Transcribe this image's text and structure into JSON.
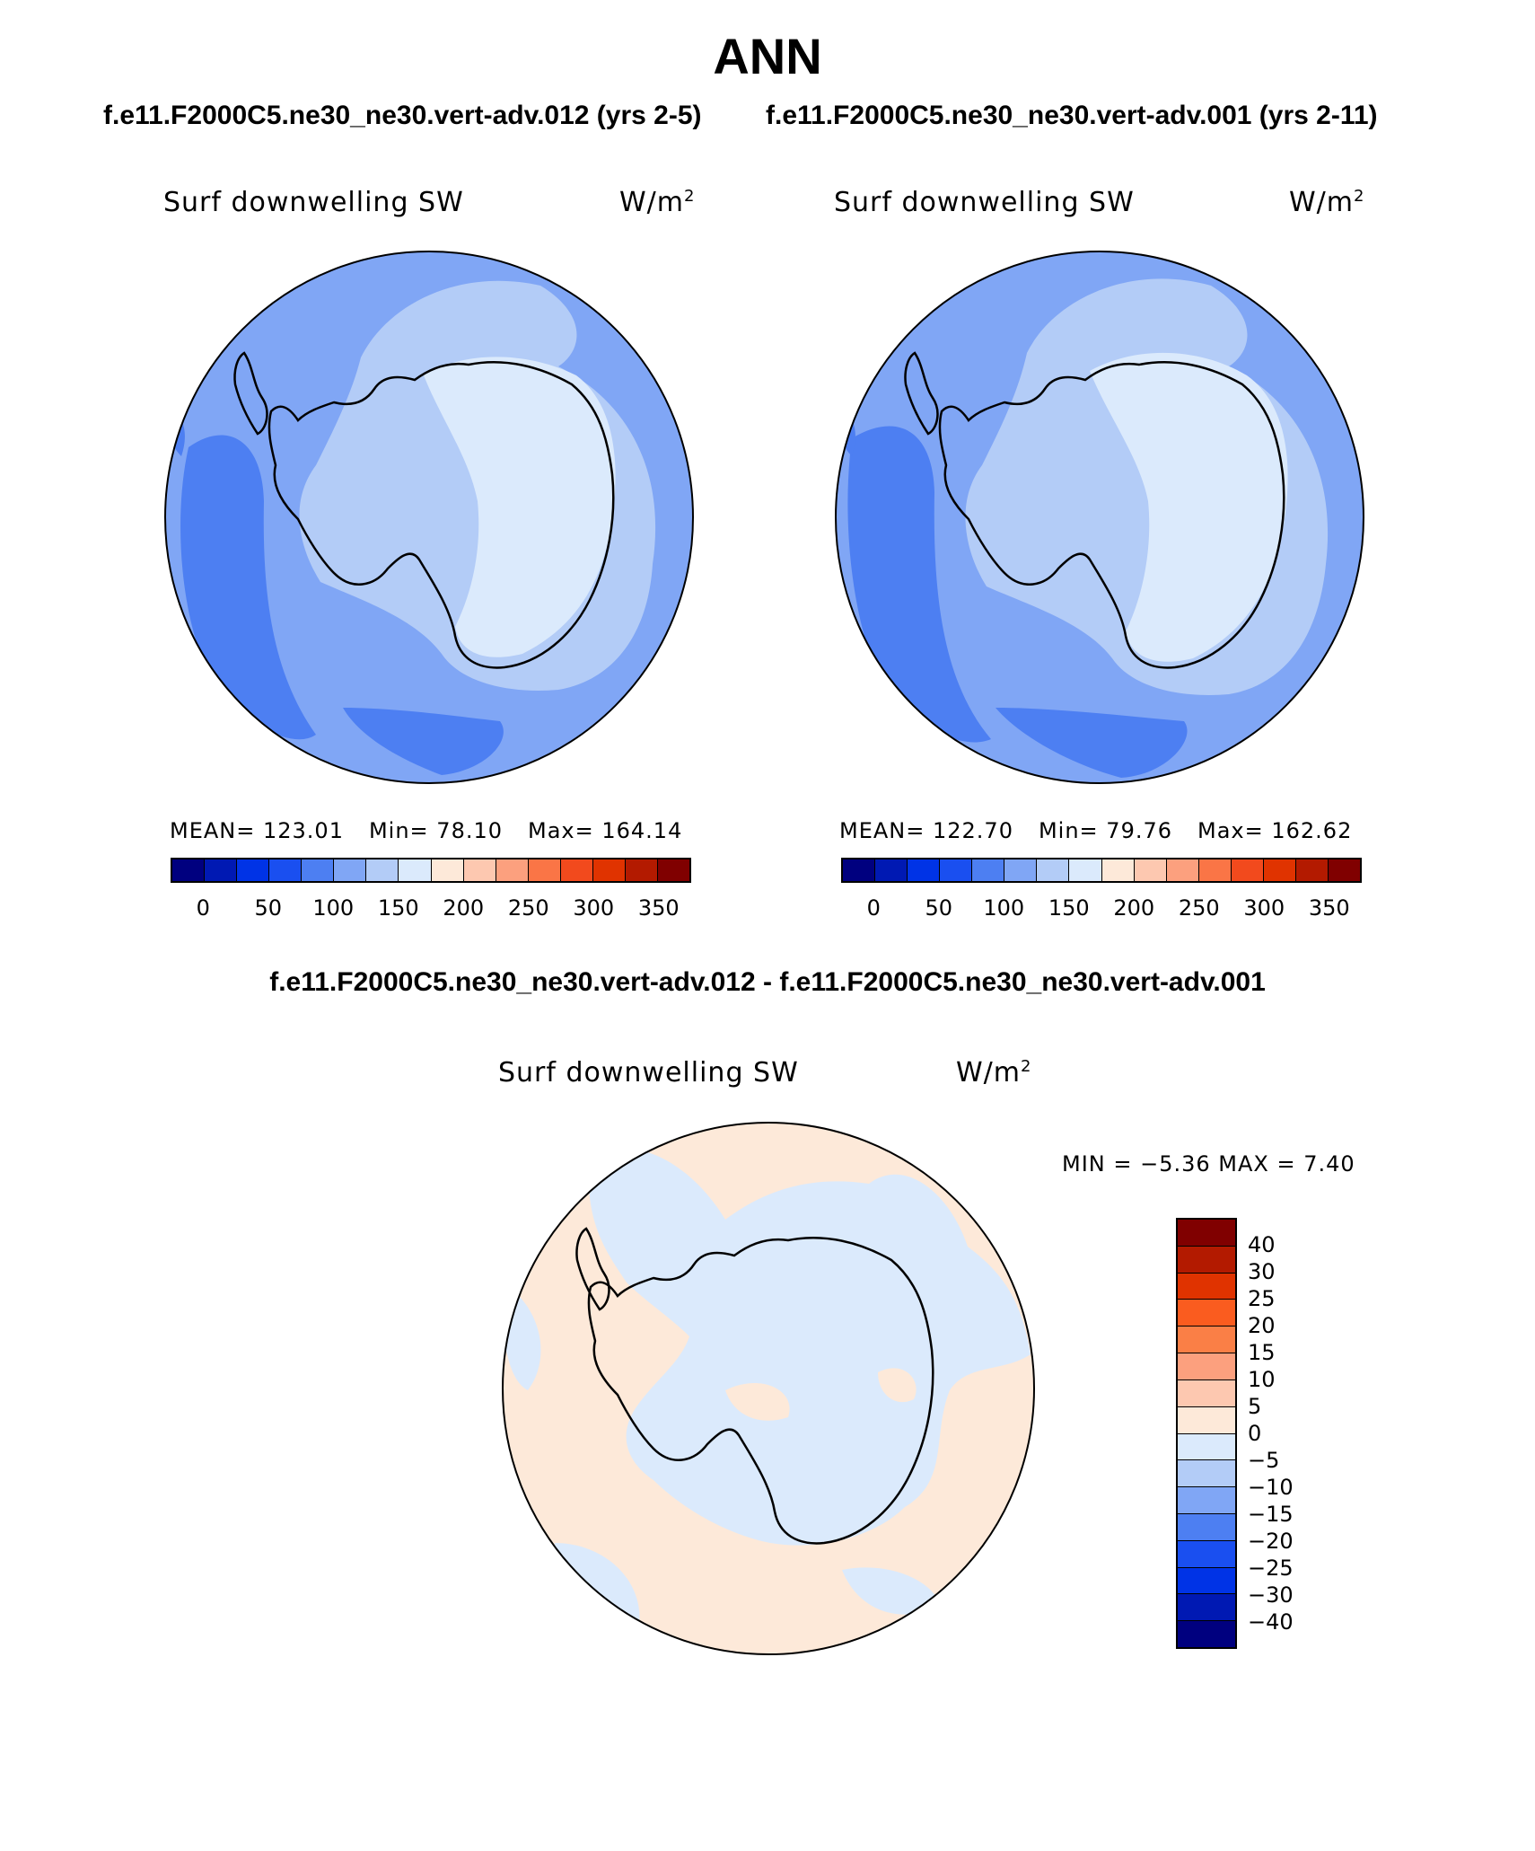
{
  "figure": {
    "title": "ANN",
    "case_left": "f.e11.F2000C5.ne30_ne30.vert-adv.012 (yrs 2-5)",
    "case_right": "f.e11.F2000C5.ne30_ne30.vert-adv.001 (yrs 2-11)",
    "diff_title": "f.e11.F2000C5.ne30_ne30.vert-adv.012 - f.e11.F2000C5.ne30_ne30.vert-adv.001"
  },
  "panels": [
    {
      "variable": "Surf downwelling SW",
      "units_base": "W/m",
      "units_exp": "2",
      "stats": {
        "mean_label": "MEAN= 123.01",
        "min_label": "Min=   78.10",
        "max_label": "Max= 164.14"
      }
    },
    {
      "variable": "Surf downwelling SW",
      "units_base": "W/m",
      "units_exp": "2",
      "stats": {
        "mean_label": "MEAN= 122.70",
        "min_label": "Min=   79.76",
        "max_label": "Max= 162.62"
      }
    },
    {
      "variable": "Surf downwelling SW",
      "units_base": "W/m",
      "units_exp": "2",
      "stats": {
        "minmax_label": "MIN =   −5.36 MAX =     7.40"
      }
    }
  ],
  "colorbar_abs": {
    "colors": [
      "#00007f",
      "#0019b3",
      "#0033e6",
      "#1a4ff0",
      "#4d7ff2",
      "#80a6f5",
      "#b3ccf7",
      "#dbeafc",
      "#fde9d9",
      "#fdc8b0",
      "#fca07e",
      "#fa7546",
      "#f24a1d",
      "#e03300",
      "#b31a00",
      "#800000"
    ],
    "tick_labels": [
      "0",
      "50",
      "100",
      "150",
      "200",
      "250",
      "300",
      "350"
    ]
  },
  "colorbar_diff": {
    "colors_top_to_bottom": [
      "#800000",
      "#b31a00",
      "#e03300",
      "#fa5c1f",
      "#fa7f46",
      "#fca07e",
      "#fdc8b0",
      "#fde9d9",
      "#dbeafc",
      "#b3ccf7",
      "#80a6f5",
      "#4d7ff2",
      "#1a4ff0",
      "#0033e6",
      "#0019b3",
      "#00007f"
    ],
    "tick_labels": [
      "40",
      "30",
      "25",
      "20",
      "15",
      "10",
      "5",
      "0",
      "−5",
      "−10",
      "−15",
      "−20",
      "−25",
      "−30",
      "−40"
    ]
  },
  "colors": {
    "ocean_mid": "#80a6f5",
    "ocean_dark": "#4d7ff2",
    "coastal_light": "#b3ccf7",
    "plateau": "#dbeafc",
    "diff_positive": "#fde9d9",
    "diff_negative": "#dbeafc"
  }
}
